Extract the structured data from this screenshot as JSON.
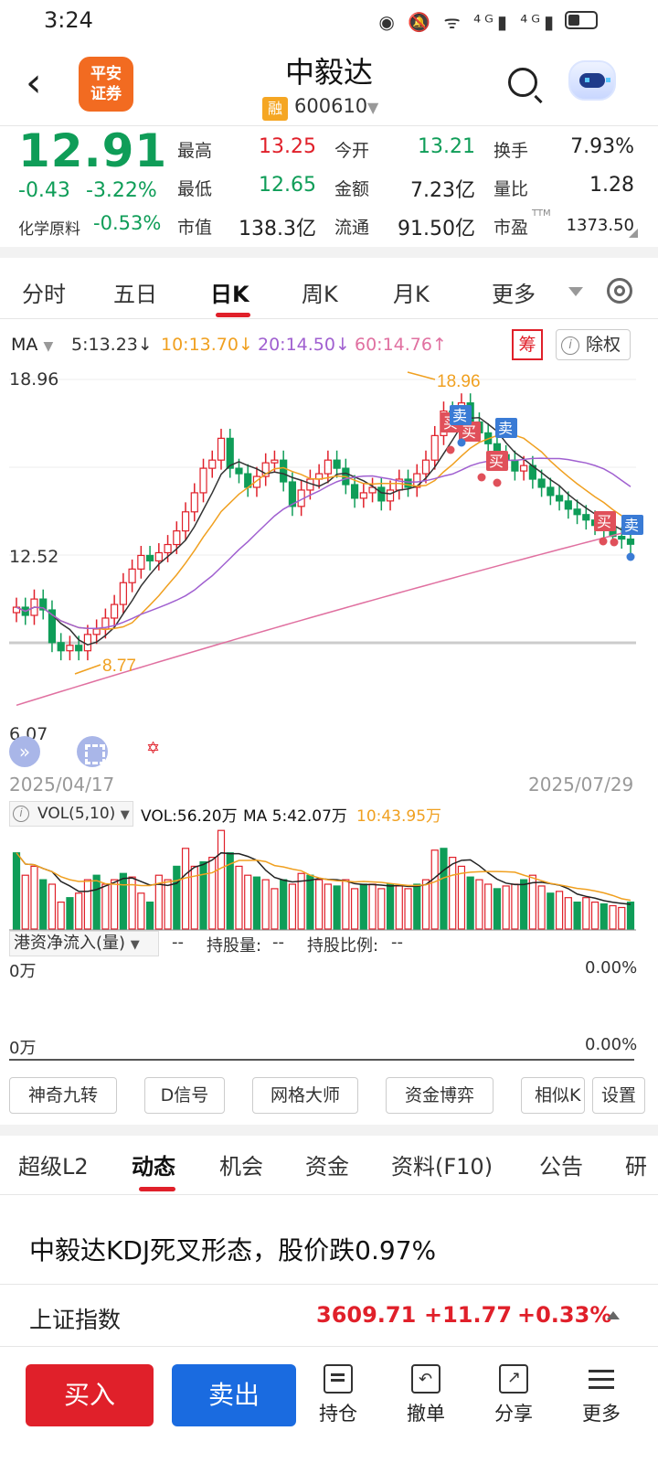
{
  "status_bar": {
    "time": "3:24",
    "icons": "◉ 🔕 ᯤ ⁴ᴳ▮ ⁴ᴳ▮"
  },
  "header": {
    "back": "‹",
    "logo": "平安证券",
    "logo_l1": "平安",
    "logo_l2": "证券",
    "stock_name": "中毅达",
    "rong": "融",
    "code": "600610",
    "code_arrow": "▼"
  },
  "quote": {
    "price": "12.91",
    "change": "-0.43",
    "change_pct": "-3.22%",
    "sector": "化学原料",
    "sector_pct": "-0.53%",
    "fields": [
      {
        "label": "最高",
        "value": "13.25",
        "color": "#e0202a"
      },
      {
        "label": "今开",
        "value": "13.21",
        "color": "#0f9d58"
      },
      {
        "label": "换手",
        "value": "7.93%",
        "color": "#222222"
      },
      {
        "label": "最低",
        "value": "12.65",
        "color": "#0f9d58"
      },
      {
        "label": "金额",
        "value": "7.23亿",
        "color": "#222222"
      },
      {
        "label": "量比",
        "value": "1.28",
        "color": "#222222"
      },
      {
        "label": "市值",
        "value": "138.3亿",
        "color": "#222222"
      },
      {
        "label": "流通",
        "value": "91.50亿",
        "color": "#222222"
      },
      {
        "label": "市盈",
        "value": "1373.50",
        "color": "#222222"
      }
    ],
    "ttm": "TTM"
  },
  "chart_tabs": [
    "分时",
    "五日",
    "日K",
    "周K",
    "月K",
    "更多"
  ],
  "ma_legend": {
    "label": "MA",
    "items": [
      {
        "text": "5:13.23↓",
        "color": "#333333"
      },
      {
        "text": "10:13.70↓",
        "color": "#f0a020"
      },
      {
        "text": "20:14.50↓",
        "color": "#a060d0"
      },
      {
        "text": "60:14.76↑",
        "color": "#e070a0"
      }
    ],
    "chou": "筹",
    "chuquan": "除权"
  },
  "chart_data": {
    "type": "candlestick",
    "y_axis_labels": [
      "18.96",
      "12.52",
      "6.07"
    ],
    "x_axis_labels": [
      "2025/04/17",
      "2025/07/29"
    ],
    "ylim": [
      6.07,
      18.96
    ],
    "annotations": {
      "high": "18.96",
      "low": "8.77",
      "buy": "买",
      "sell": "卖"
    },
    "colors": {
      "up": "#e0202a",
      "down": "#0f9d58",
      "ma5": "#333333",
      "ma10": "#f0a020",
      "ma20": "#a060d0",
      "ma60": "#e070a0"
    },
    "volume": {
      "indicator": "VOL(5,10)",
      "vol": "VOL:56.20万",
      "ma5": "MA 5:42.07万",
      "ma10": "10:43.95万"
    }
  },
  "hk_flow": {
    "selector": "港资净流入(量)",
    "value": "--",
    "holding_label": "持股量:",
    "holding": "--",
    "ratio_label": "持股比例:",
    "ratio": "--",
    "zero_top": "0万",
    "zero_bottom": "0万",
    "pct_top": "0.00%",
    "pct_bottom": "0.00%"
  },
  "tools": [
    "神奇九转",
    "D信号",
    "网格大师",
    "资金博弈",
    "相似K",
    "设置"
  ],
  "sub_tabs": [
    "超级L2",
    "动态",
    "机会",
    "资金",
    "资料(F10)",
    "公告",
    "研"
  ],
  "news_headline": "中毅达KDJ死叉形态，股价跌0.97%",
  "index_bar": {
    "name": "上证指数",
    "value": "3609.71",
    "change": "+11.77",
    "pct": "+0.33%"
  },
  "bottom_bar": {
    "buy": "买入",
    "sell": "卖出",
    "items": [
      "持仓",
      "撤单",
      "分享",
      "更多"
    ]
  }
}
